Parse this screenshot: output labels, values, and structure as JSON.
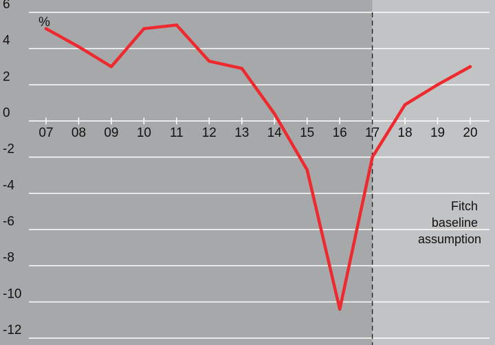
{
  "chart_data": {
    "type": "line",
    "title": "",
    "xlabel": "",
    "ylabel": "",
    "unit_label": "%",
    "categories": [
      "07",
      "08",
      "09",
      "10",
      "11",
      "12",
      "13",
      "14",
      "15",
      "16",
      "17",
      "18",
      "19",
      "20"
    ],
    "series": [
      {
        "values": [
          5.1,
          4.1,
          3.0,
          5.1,
          5.3,
          3.3,
          2.9,
          0.4,
          -2.7,
          -10.4,
          -2.0,
          0.9,
          2.0,
          3.0
        ],
        "color": "#ee2a2f"
      }
    ],
    "ylim": [
      -12,
      6
    ],
    "yticks": [
      6,
      4,
      2,
      0,
      -2,
      -4,
      -6,
      -8,
      -10,
      -12
    ],
    "grid": true,
    "forecast_start": "17",
    "forecast_shading_color": "#c2c3c5",
    "annotation": {
      "lines": [
        "Fitch",
        "baseline",
        "assumption"
      ]
    }
  }
}
